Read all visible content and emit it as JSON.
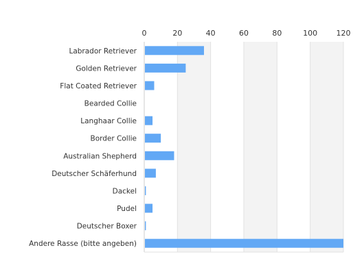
{
  "chart_data": {
    "type": "bar",
    "orientation": "horizontal",
    "title": "",
    "xlabel": "",
    "ylabel": "",
    "categories": [
      "Labrador Retriever",
      "Golden Retriever",
      "Flat Coated Retriever",
      "Bearded Collie",
      "Langhaar Collie",
      "Border Collie",
      "Australian Shepherd",
      "Deutscher Schäferhund",
      "Dackel",
      "Pudel",
      "Deutscher Boxer",
      "Andere Rasse (bitte angeben)"
    ],
    "values": [
      36,
      25,
      6,
      0,
      5,
      10,
      18,
      7,
      1,
      5,
      1,
      120
    ],
    "xlim": [
      0,
      120
    ],
    "xticks": [
      0,
      20,
      40,
      60,
      80,
      100,
      120
    ],
    "x_axis_position": "top",
    "grid": true,
    "alternating_bands": true,
    "legend": "none",
    "colors": {
      "bar": "#62a8f5",
      "band": "#f3f3f3",
      "grid": "#e2e2e2",
      "text": "#333333"
    }
  }
}
